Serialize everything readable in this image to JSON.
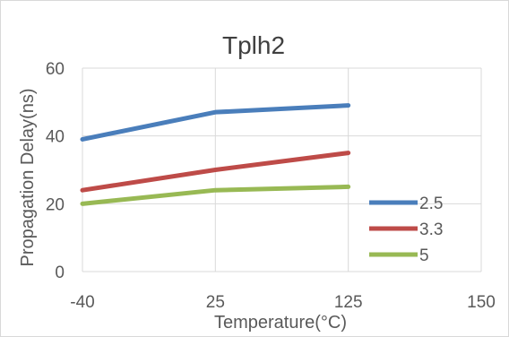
{
  "chart_data": {
    "type": "line",
    "title": "Tplh2",
    "xlabel": "Temperature(°C)",
    "ylabel": "Propagation Delay(ns)",
    "categories": [
      "-40",
      "25",
      "125",
      "150"
    ],
    "ylim": [
      0,
      60
    ],
    "yticks": [
      "0",
      "20",
      "40",
      "60"
    ],
    "grid": true,
    "legend_position": "right",
    "series": [
      {
        "name": "2.5",
        "color": "#4a7ebb",
        "values": [
          39,
          47,
          49,
          null
        ]
      },
      {
        "name": "3.3",
        "color": "#be4b48",
        "values": [
          24,
          30,
          35,
          null
        ]
      },
      {
        "name": "5",
        "color": "#98b954",
        "values": [
          20,
          24,
          25,
          null
        ]
      }
    ]
  }
}
